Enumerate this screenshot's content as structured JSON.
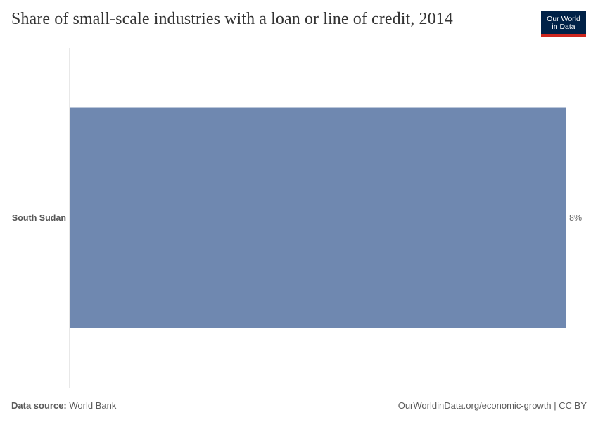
{
  "header": {
    "title": "Share of small-scale industries with a loan or line of credit, 2014",
    "logo_line1": "Our World",
    "logo_line2": "in Data",
    "logo_color": "#002147",
    "logo_accent": "#ce261e"
  },
  "chart_data": {
    "type": "bar",
    "orientation": "horizontal",
    "categories": [
      "South Sudan"
    ],
    "values": [
      8
    ],
    "value_labels": [
      "8%"
    ],
    "unit": "%",
    "bar_color": "#6f88b0",
    "xlim": [
      0,
      8
    ],
    "grid": false
  },
  "footer": {
    "source_label": "Data source:",
    "source_value": "World Bank",
    "url_text": "OurWorldinData.org/economic-growth | CC BY"
  }
}
